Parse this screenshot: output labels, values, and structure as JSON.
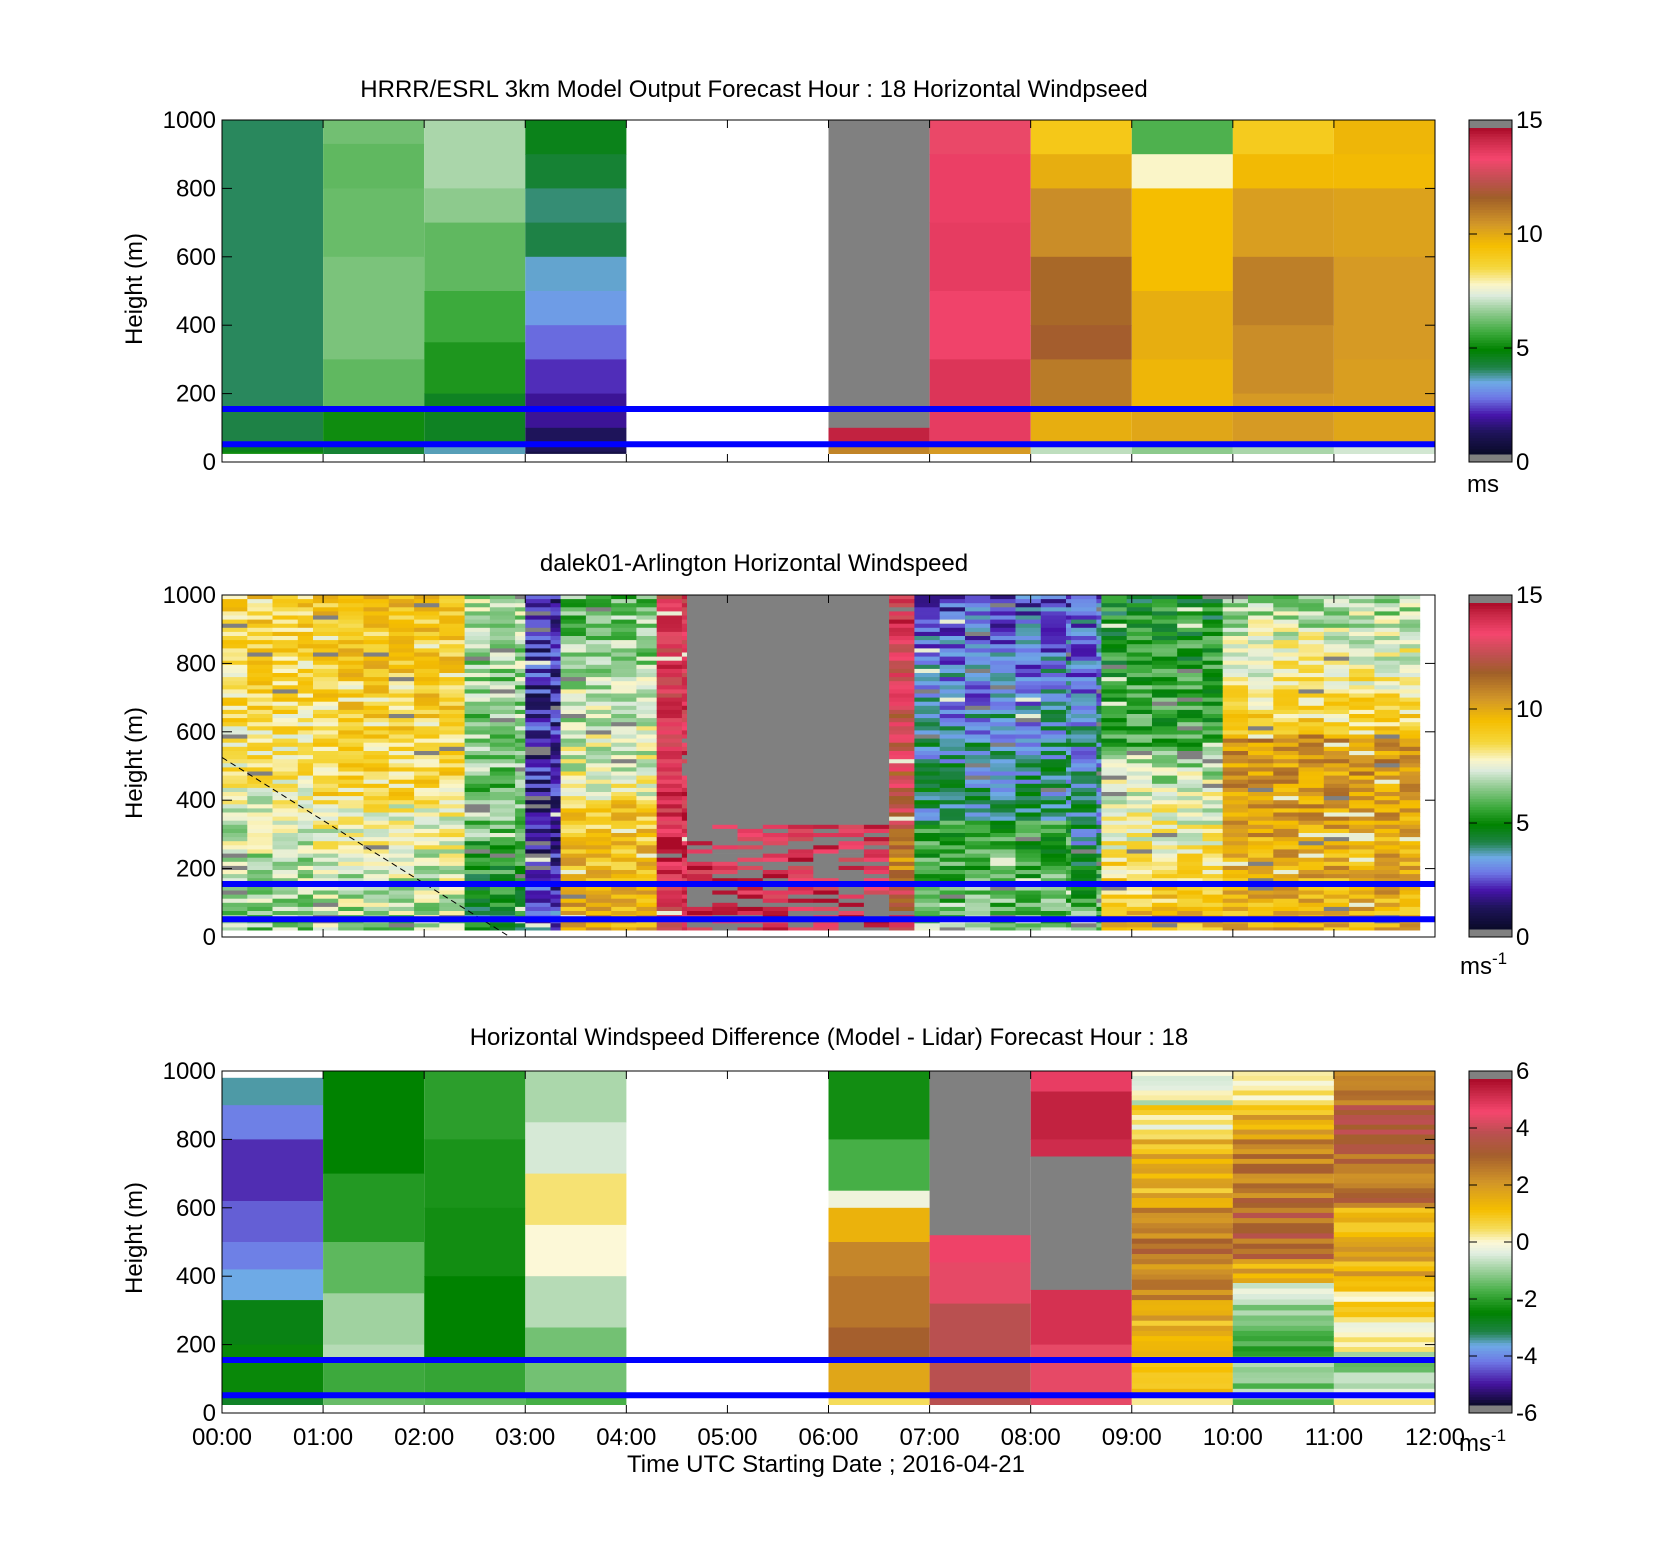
{
  "chart_data": [
    {
      "type": "heatmap",
      "title": "HRRR/ESRL 3km Model Output   Forecast Hour : 18 Horizontal Windpseed",
      "ylabel": "Height (m)",
      "ylim": [
        0,
        1000
      ],
      "yticks": [
        "0",
        "200",
        "400",
        "600",
        "800",
        "1000"
      ],
      "xlim_hours": [
        0,
        12
      ],
      "colorbar": {
        "range": [
          0,
          15
        ],
        "ticks": [
          "0",
          "5",
          "10",
          "15"
        ],
        "unit": "ms",
        "unit_sup": "",
        "palette": "speed"
      },
      "reference_lines_m": [
        155,
        52
      ],
      "columns": [
        {
          "hour": 0,
          "cells": [
            [
              1000,
              3.9
            ],
            [
              150,
              4.0
            ],
            [
              55,
              4.5
            ],
            [
              30,
              5.0
            ]
          ]
        },
        {
          "hour": 1,
          "cells": [
            [
              1000,
              6.2
            ],
            [
              930,
              6.0
            ],
            [
              800,
              6.1
            ],
            [
              600,
              6.3
            ],
            [
              300,
              6.0
            ],
            [
              150,
              5.0
            ],
            [
              55,
              4.2
            ]
          ]
        },
        {
          "hour": 2,
          "cells": [
            [
              1000,
              6.8
            ],
            [
              800,
              6.5
            ],
            [
              700,
              6.0
            ],
            [
              500,
              5.6
            ],
            [
              350,
              5.2
            ],
            [
              200,
              4.4
            ],
            [
              55,
              3.5
            ]
          ]
        },
        {
          "hour": 3,
          "cells": [
            [
              1000,
              4.5
            ],
            [
              900,
              4.2
            ],
            [
              800,
              3.8
            ],
            [
              700,
              4.0
            ],
            [
              600,
              3.4
            ],
            [
              500,
              3.1
            ],
            [
              400,
              2.5
            ],
            [
              300,
              2.0
            ],
            [
              200,
              1.6
            ],
            [
              100,
              1.0
            ],
            [
              30,
              0.6
            ]
          ]
        },
        {
          "hour": 4,
          "cells": []
        },
        {
          "hour": 5,
          "cells": []
        },
        {
          "hour": 6,
          "cells": [
            [
              1000,
              -1
            ],
            [
              100,
              14.6
            ],
            [
              55,
              11.0
            ]
          ]
        },
        {
          "hour": 7,
          "cells": [
            [
              1000,
              13.4
            ],
            [
              900,
              13.8
            ],
            [
              700,
              13.9
            ],
            [
              500,
              13.7
            ],
            [
              300,
              14.1
            ],
            [
              150,
              13.9
            ],
            [
              55,
              10.5
            ]
          ]
        },
        {
          "hour": 8,
          "cells": [
            [
              1000,
              9.2
            ],
            [
              900,
              10.0
            ],
            [
              800,
              10.8
            ],
            [
              600,
              11.6
            ],
            [
              400,
              11.9
            ],
            [
              300,
              11.2
            ],
            [
              150,
              10.0
            ],
            [
              55,
              7.0
            ]
          ]
        },
        {
          "hour": 9,
          "cells": [
            [
              1000,
              5.8
            ],
            [
              900,
              7.8
            ],
            [
              800,
              9.6
            ],
            [
              500,
              10.0
            ],
            [
              300,
              9.8
            ],
            [
              150,
              10.2
            ],
            [
              55,
              6.5
            ]
          ]
        },
        {
          "hour": 10,
          "cells": [
            [
              1000,
              9.1
            ],
            [
              900,
              9.7
            ],
            [
              800,
              10.4
            ],
            [
              600,
              11.1
            ],
            [
              400,
              10.8
            ],
            [
              200,
              10.5
            ],
            [
              55,
              6.8
            ]
          ]
        },
        {
          "hour": 11,
          "cells": [
            [
              1000,
              9.8
            ],
            [
              900,
              9.7
            ],
            [
              800,
              10.3
            ],
            [
              600,
              10.5
            ],
            [
              300,
              10.4
            ],
            [
              150,
              10.2
            ],
            [
              55,
              7.2
            ]
          ]
        }
      ]
    },
    {
      "type": "heatmap",
      "title": "dalek01-Arlington  Horizontal Windspeed",
      "ylabel": "Height (m)",
      "ylim": [
        0,
        1000
      ],
      "yticks": [
        "0",
        "200",
        "400",
        "600",
        "800",
        "1000"
      ],
      "xlim_hours": [
        0,
        12
      ],
      "colorbar": {
        "range": [
          0,
          15
        ],
        "ticks": [
          "0",
          "5",
          "10",
          "15"
        ],
        "unit": "ms",
        "unit_sup": "-1",
        "palette": "speed"
      },
      "reference_lines_m": [
        155,
        52
      ],
      "data_end_hour": 11.85,
      "time_steps_per_hour": 4,
      "regions": [
        {
          "t0": 0.0,
          "t1": 0.9,
          "top": 9.0,
          "mid": 7.6,
          "low": 6.2,
          "split_m": 450
        },
        {
          "t0": 0.9,
          "t1": 2.4,
          "top": 9.4,
          "mid": 8.0,
          "low": 6.6,
          "split_m": 400
        },
        {
          "t0": 2.4,
          "t1": 3.0,
          "top": 6.8,
          "mid": 5.5,
          "low": 4.4,
          "split_m": 300
        },
        {
          "t0": 3.0,
          "t1": 3.35,
          "top": 1.8,
          "mid": 1.6,
          "low": 2.8,
          "split_m": 200
        },
        {
          "t0": 3.35,
          "t1": 4.3,
          "top": 6.0,
          "mid": 9.0,
          "low": 10.2,
          "split_m": 400
        },
        {
          "t0": 4.3,
          "t1": 4.6,
          "top": 13.5,
          "mid": 14.5,
          "low": 13.2,
          "split_m": 300
        },
        {
          "t0": 4.6,
          "t1": 6.6,
          "top": -1,
          "mid": -1,
          "low": -1,
          "split_m": 300,
          "low_red": true
        },
        {
          "t0": 6.6,
          "t1": 6.85,
          "top": 14.0,
          "mid": 10.5,
          "low": 14.2,
          "split_m": 250
        },
        {
          "t0": 6.85,
          "t1": 8.4,
          "top": 2.3,
          "mid": 5.2,
          "low": 6.5,
          "split_m": 350
        },
        {
          "t0": 8.4,
          "t1": 8.7,
          "top": 2.6,
          "mid": 4.6,
          "low": 6.8,
          "split_m": 250
        },
        {
          "t0": 8.7,
          "t1": 9.9,
          "top": 4.8,
          "mid": 6.5,
          "low": 9.8,
          "split_m": 550
        },
        {
          "t0": 9.9,
          "t1": 11.85,
          "top": 6.6,
          "mid": 10.6,
          "low": 9.7,
          "split_m": 600
        }
      ],
      "dashed_line": {
        "from": [
          0.0,
          525
        ],
        "to": [
          2.85,
          0
        ]
      }
    },
    {
      "type": "heatmap",
      "title": "Horizontal Windspeed Difference (Model - Lidar) Forecast Hour : 18",
      "ylabel": "Height (m)",
      "xlabel": "Time UTC  Starting Date ; 2016-04-21",
      "ylim": [
        0,
        1000
      ],
      "yticks": [
        "0",
        "200",
        "400",
        "600",
        "800",
        "1000"
      ],
      "xlim_hours": [
        0,
        12
      ],
      "xticks": [
        "00:00",
        "01:00",
        "02:00",
        "03:00",
        "04:00",
        "05:00",
        "06:00",
        "07:00",
        "08:00",
        "09:00",
        "10:00",
        "11:00",
        "12:00"
      ],
      "colorbar": {
        "range": [
          -6,
          6
        ],
        "ticks": [
          "-6",
          "-4",
          "-2",
          "0",
          "2",
          "4",
          "6"
        ],
        "unit": "ms",
        "unit_sup": "-1",
        "palette": "diff"
      },
      "reference_lines_m": [
        155,
        52
      ],
      "columns": [
        {
          "hour": 0,
          "cells": [
            [
              980,
              -3.6
            ],
            [
              900,
              -4.3
            ],
            [
              800,
              -5.0
            ],
            [
              620,
              -4.6
            ],
            [
              500,
              -4.3
            ],
            [
              420,
              -3.8
            ],
            [
              330,
              -2.8
            ],
            [
              200,
              -2.5
            ],
            [
              60,
              -3.0
            ]
          ]
        },
        {
          "hour": 1,
          "cells": [
            [
              1000,
              -2.6
            ],
            [
              700,
              -2.2
            ],
            [
              500,
              -1.6
            ],
            [
              350,
              -1.0
            ],
            [
              200,
              -0.8
            ],
            [
              150,
              -1.9
            ],
            [
              55,
              -1.5
            ]
          ]
        },
        {
          "hour": 2,
          "cells": [
            [
              1000,
              -2.1
            ],
            [
              800,
              -2.3
            ],
            [
              600,
              -2.4
            ],
            [
              400,
              -2.6
            ],
            [
              150,
              -2.0
            ],
            [
              55,
              -1.6
            ]
          ]
        },
        {
          "hour": 3,
          "cells": [
            [
              1000,
              -0.9
            ],
            [
              850,
              -0.5
            ],
            [
              700,
              0.4
            ],
            [
              550,
              0.0
            ],
            [
              400,
              -0.8
            ],
            [
              250,
              -1.4
            ],
            [
              55,
              -1.8
            ]
          ]
        },
        {
          "hour": 4,
          "cells": []
        },
        {
          "hour": 5,
          "cells": []
        },
        {
          "hour": 6,
          "cells": [
            [
              1000,
              -2.4
            ],
            [
              800,
              -1.8
            ],
            [
              650,
              -0.2
            ],
            [
              600,
              1.5
            ],
            [
              500,
              2.5
            ],
            [
              400,
              2.8
            ],
            [
              250,
              3.2
            ],
            [
              150,
              1.8
            ],
            [
              55,
              0.5
            ]
          ]
        },
        {
          "hour": 7,
          "cells": [
            [
              1000,
              -7
            ],
            [
              520,
              4.9
            ],
            [
              440,
              4.6
            ],
            [
              320,
              4.0
            ]
          ]
        },
        {
          "hour": 8,
          "cells": [
            [
              1000,
              5.0
            ],
            [
              940,
              5.6
            ],
            [
              800,
              5.4
            ],
            [
              750,
              -7
            ],
            [
              360,
              5.3
            ],
            [
              200,
              4.6
            ]
          ]
        },
        {
          "hour": 9,
          "cells": [
            [
              1000,
              -0.5
            ],
            [
              900,
              0.4
            ],
            [
              800,
              1.5
            ],
            [
              600,
              2.8
            ],
            [
              450,
              2.2
            ],
            [
              300,
              1.5
            ],
            [
              150,
              1.0
            ],
            [
              55,
              0.6
            ]
          ]
        },
        {
          "hour": 10,
          "cells": [
            [
              1000,
              0.6
            ],
            [
              900,
              1.6
            ],
            [
              800,
              2.8
            ],
            [
              600,
              3.2
            ],
            [
              450,
              1.8
            ],
            [
              380,
              -0.8
            ],
            [
              300,
              -1.6
            ],
            [
              150,
              -1.3
            ],
            [
              55,
              -1.0
            ]
          ]
        },
        {
          "hour": 11,
          "cells": [
            [
              1000,
              2.8
            ],
            [
              900,
              3.4
            ],
            [
              800,
              3.0
            ],
            [
              600,
              1.6
            ],
            [
              400,
              0.5
            ],
            [
              250,
              -0.3
            ],
            [
              150,
              -0.8
            ],
            [
              55,
              -0.3
            ]
          ]
        }
      ]
    }
  ],
  "colors": {
    "reference_line": "#0000ff",
    "nan_gray": "#808080",
    "axis": "#000000"
  }
}
